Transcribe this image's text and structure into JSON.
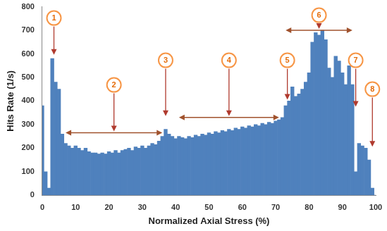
{
  "chart_data": {
    "type": "bar",
    "x_label": "Normalized Axial Stress (%)",
    "y_label": "Hits Rate (1/s)",
    "x": [
      0,
      1,
      2,
      3,
      4,
      5,
      6,
      7,
      8,
      9,
      10,
      11,
      12,
      13,
      14,
      15,
      16,
      17,
      18,
      19,
      20,
      21,
      22,
      23,
      24,
      25,
      26,
      27,
      28,
      29,
      30,
      31,
      32,
      33,
      34,
      35,
      36,
      37,
      38,
      39,
      40,
      41,
      42,
      43,
      44,
      45,
      46,
      47,
      48,
      49,
      50,
      51,
      52,
      53,
      54,
      55,
      56,
      57,
      58,
      59,
      60,
      61,
      62,
      63,
      64,
      65,
      66,
      67,
      68,
      69,
      70,
      71,
      72,
      73,
      74,
      75,
      76,
      77,
      78,
      79,
      80,
      81,
      82,
      83,
      84,
      85,
      86,
      87,
      88,
      89,
      90,
      91,
      92,
      93,
      94,
      95,
      96,
      97,
      98,
      99,
      100
    ],
    "values": [
      380,
      100,
      30,
      580,
      480,
      450,
      260,
      220,
      210,
      200,
      210,
      200,
      190,
      200,
      185,
      180,
      180,
      175,
      180,
      175,
      185,
      180,
      190,
      180,
      190,
      195,
      200,
      190,
      205,
      200,
      210,
      200,
      210,
      220,
      215,
      230,
      250,
      280,
      260,
      250,
      240,
      250,
      245,
      240,
      250,
      245,
      255,
      250,
      260,
      255,
      265,
      260,
      270,
      265,
      275,
      270,
      280,
      275,
      285,
      280,
      290,
      285,
      295,
      290,
      300,
      295,
      305,
      300,
      310,
      305,
      315,
      320,
      330,
      380,
      400,
      460,
      420,
      430,
      450,
      480,
      520,
      650,
      690,
      680,
      700,
      660,
      540,
      500,
      590,
      570,
      520,
      470,
      550,
      470,
      100,
      220,
      210,
      200,
      150,
      30,
      0
    ],
    "color": "#4f81bd",
    "xlim": [
      0,
      100
    ],
    "xticks": [
      0,
      10,
      20,
      30,
      40,
      50,
      60,
      70,
      80,
      90,
      100
    ],
    "ylim": [
      0,
      800
    ],
    "yticks": [
      0,
      100,
      200,
      300,
      400,
      500,
      600,
      700,
      800
    ],
    "grid": false,
    "annotations": [
      {
        "label": "1",
        "x": 3.5,
        "y": 590
      },
      {
        "label": "2",
        "x_range": [
          7,
          36
        ],
        "y": 265
      },
      {
        "label": "3",
        "x": 37,
        "y": 330
      },
      {
        "label": "4",
        "x_range": [
          41,
          71
        ],
        "y": 330
      },
      {
        "label": "5",
        "x": 73.5,
        "y": 400
      },
      {
        "label": "6",
        "x_range": [
          73,
          93
        ],
        "y": 700
      },
      {
        "label": "7",
        "x": 94,
        "y": 370
      },
      {
        "label": "8",
        "x": 99,
        "y": 200
      }
    ]
  }
}
